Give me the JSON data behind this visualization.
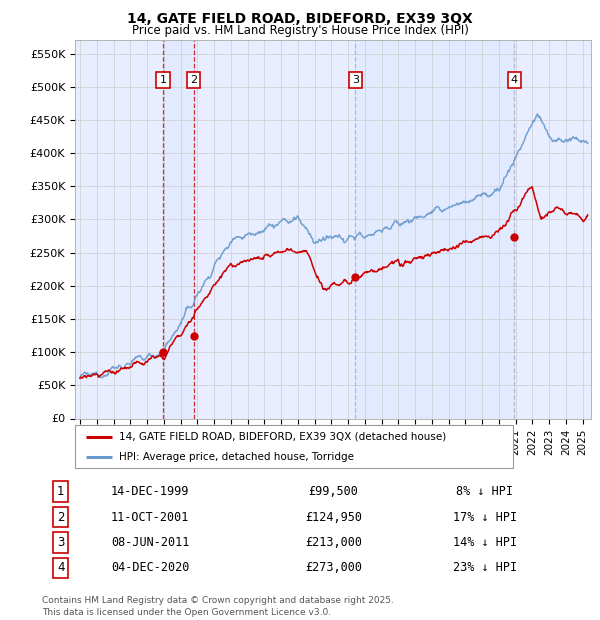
{
  "title1": "14, GATE FIELD ROAD, BIDEFORD, EX39 3QX",
  "title2": "Price paid vs. HM Land Registry's House Price Index (HPI)",
  "legend_line1": "14, GATE FIELD ROAD, BIDEFORD, EX39 3QX (detached house)",
  "legend_line2": "HPI: Average price, detached house, Torridge",
  "ylim": [
    0,
    570000
  ],
  "yticks": [
    0,
    50000,
    100000,
    150000,
    200000,
    250000,
    300000,
    350000,
    400000,
    450000,
    500000,
    550000
  ],
  "ytick_labels": [
    "£0",
    "£50K",
    "£100K",
    "£150K",
    "£200K",
    "£250K",
    "£300K",
    "£350K",
    "£400K",
    "£450K",
    "£500K",
    "£550K"
  ],
  "xlim_start": 1994.7,
  "xlim_end": 2025.5,
  "sale_dates_year": [
    1999.95,
    2001.78,
    2011.44,
    2020.92
  ],
  "sale_prices": [
    99500,
    124950,
    213000,
    273000
  ],
  "sale_labels": [
    "1",
    "2",
    "3",
    "4"
  ],
  "sale_date_strs": [
    "14-DEC-1999",
    "11-OCT-2001",
    "08-JUN-2011",
    "04-DEC-2020"
  ],
  "sale_price_strs": [
    "£99,500",
    "£124,950",
    "£213,000",
    "£273,000"
  ],
  "sale_pct_strs": [
    "8% ↓ HPI",
    "17% ↓ HPI",
    "14% ↓ HPI",
    "23% ↓ HPI"
  ],
  "sale_line_colors": [
    "#CC0000",
    "#CC0000",
    "#aaaacc",
    "#aaaacc"
  ],
  "sale_shade_pairs": [
    [
      0,
      1
    ]
  ],
  "hpi_color": "#6699cc",
  "price_color": "#CC0000",
  "bg_color": "#e8eeff",
  "footnote1": "Contains HM Land Registry data © Crown copyright and database right 2025.",
  "footnote2": "This data is licensed under the Open Government Licence v3.0."
}
